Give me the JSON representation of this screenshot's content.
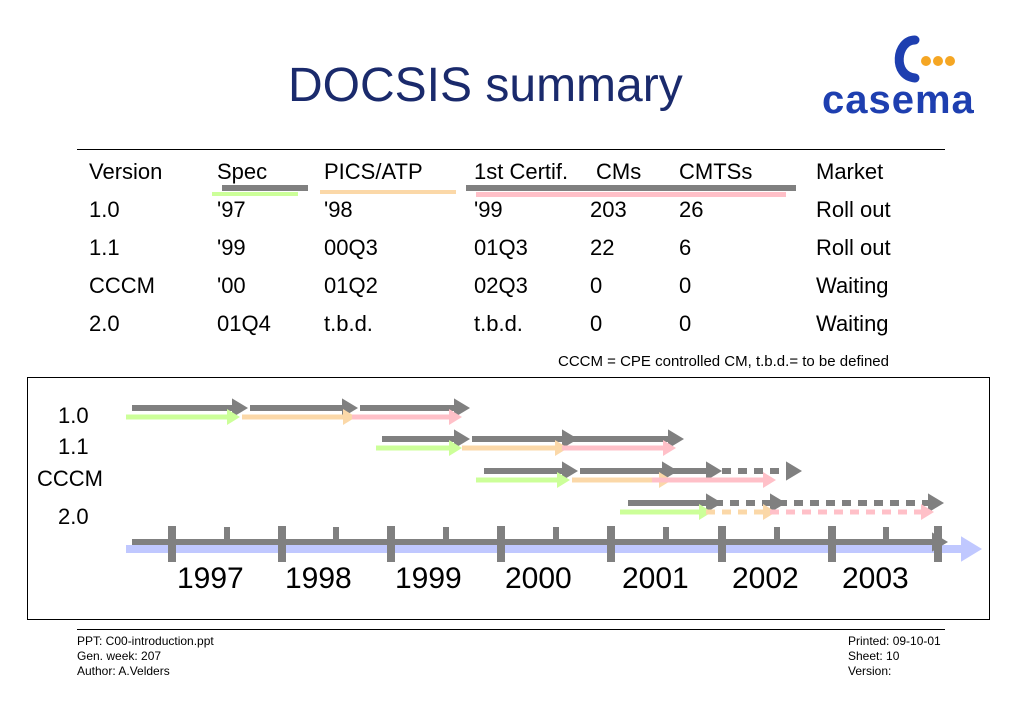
{
  "title": "DOCSIS summary",
  "logo": {
    "text": "casema",
    "colors": {
      "blue": "#1e3fb0",
      "orange": "#f5a623"
    }
  },
  "table": {
    "headers": [
      "Version",
      "Spec",
      "PICS/ATP",
      "1st Certif.",
      "CMs",
      "CMTSs",
      "Market"
    ],
    "rows": [
      [
        "1.0",
        "'97",
        "'98",
        "'99",
        "203",
        "26",
        "Roll out"
      ],
      [
        "1.1",
        "'99",
        "00Q3",
        "01Q3",
        "22",
        "6",
        "Roll out"
      ],
      [
        "CCCM",
        "'00",
        "01Q2",
        "02Q3",
        "0",
        "0",
        "Waiting"
      ],
      [
        "2.0",
        "01Q4",
        "t.b.d.",
        "t.b.d.",
        "0",
        "0",
        "Waiting"
      ]
    ],
    "header_underline_colors": {
      "spec": "#808080",
      "spec_green": "#ccff99",
      "pics": "#fbd8a8",
      "certif": "#ffc0c8",
      "cmtss": "#808080"
    }
  },
  "note": "CCCM = CPE controlled CM,   t.b.d.= to be defined",
  "timeline": {
    "labels": [
      "1.0",
      "1.1",
      "CCCM",
      "2.0"
    ],
    "years": [
      "1997",
      "1998",
      "1999",
      "2000",
      "2001",
      "2002",
      "2003"
    ],
    "colors": {
      "spec": "#808080",
      "pics": "#ccff99",
      "certif": "#fbd8a8",
      "market": "#ffc0c8",
      "axis": "#c0c8ff",
      "tick": "#808080"
    }
  },
  "footer": {
    "left": [
      "PPT: C00-introduction.ppt",
      "Gen. week: 207",
      "Author: A.Velders"
    ],
    "right": [
      "Printed: 09-10-01",
      "Sheet: 10",
      "Version:"
    ]
  }
}
